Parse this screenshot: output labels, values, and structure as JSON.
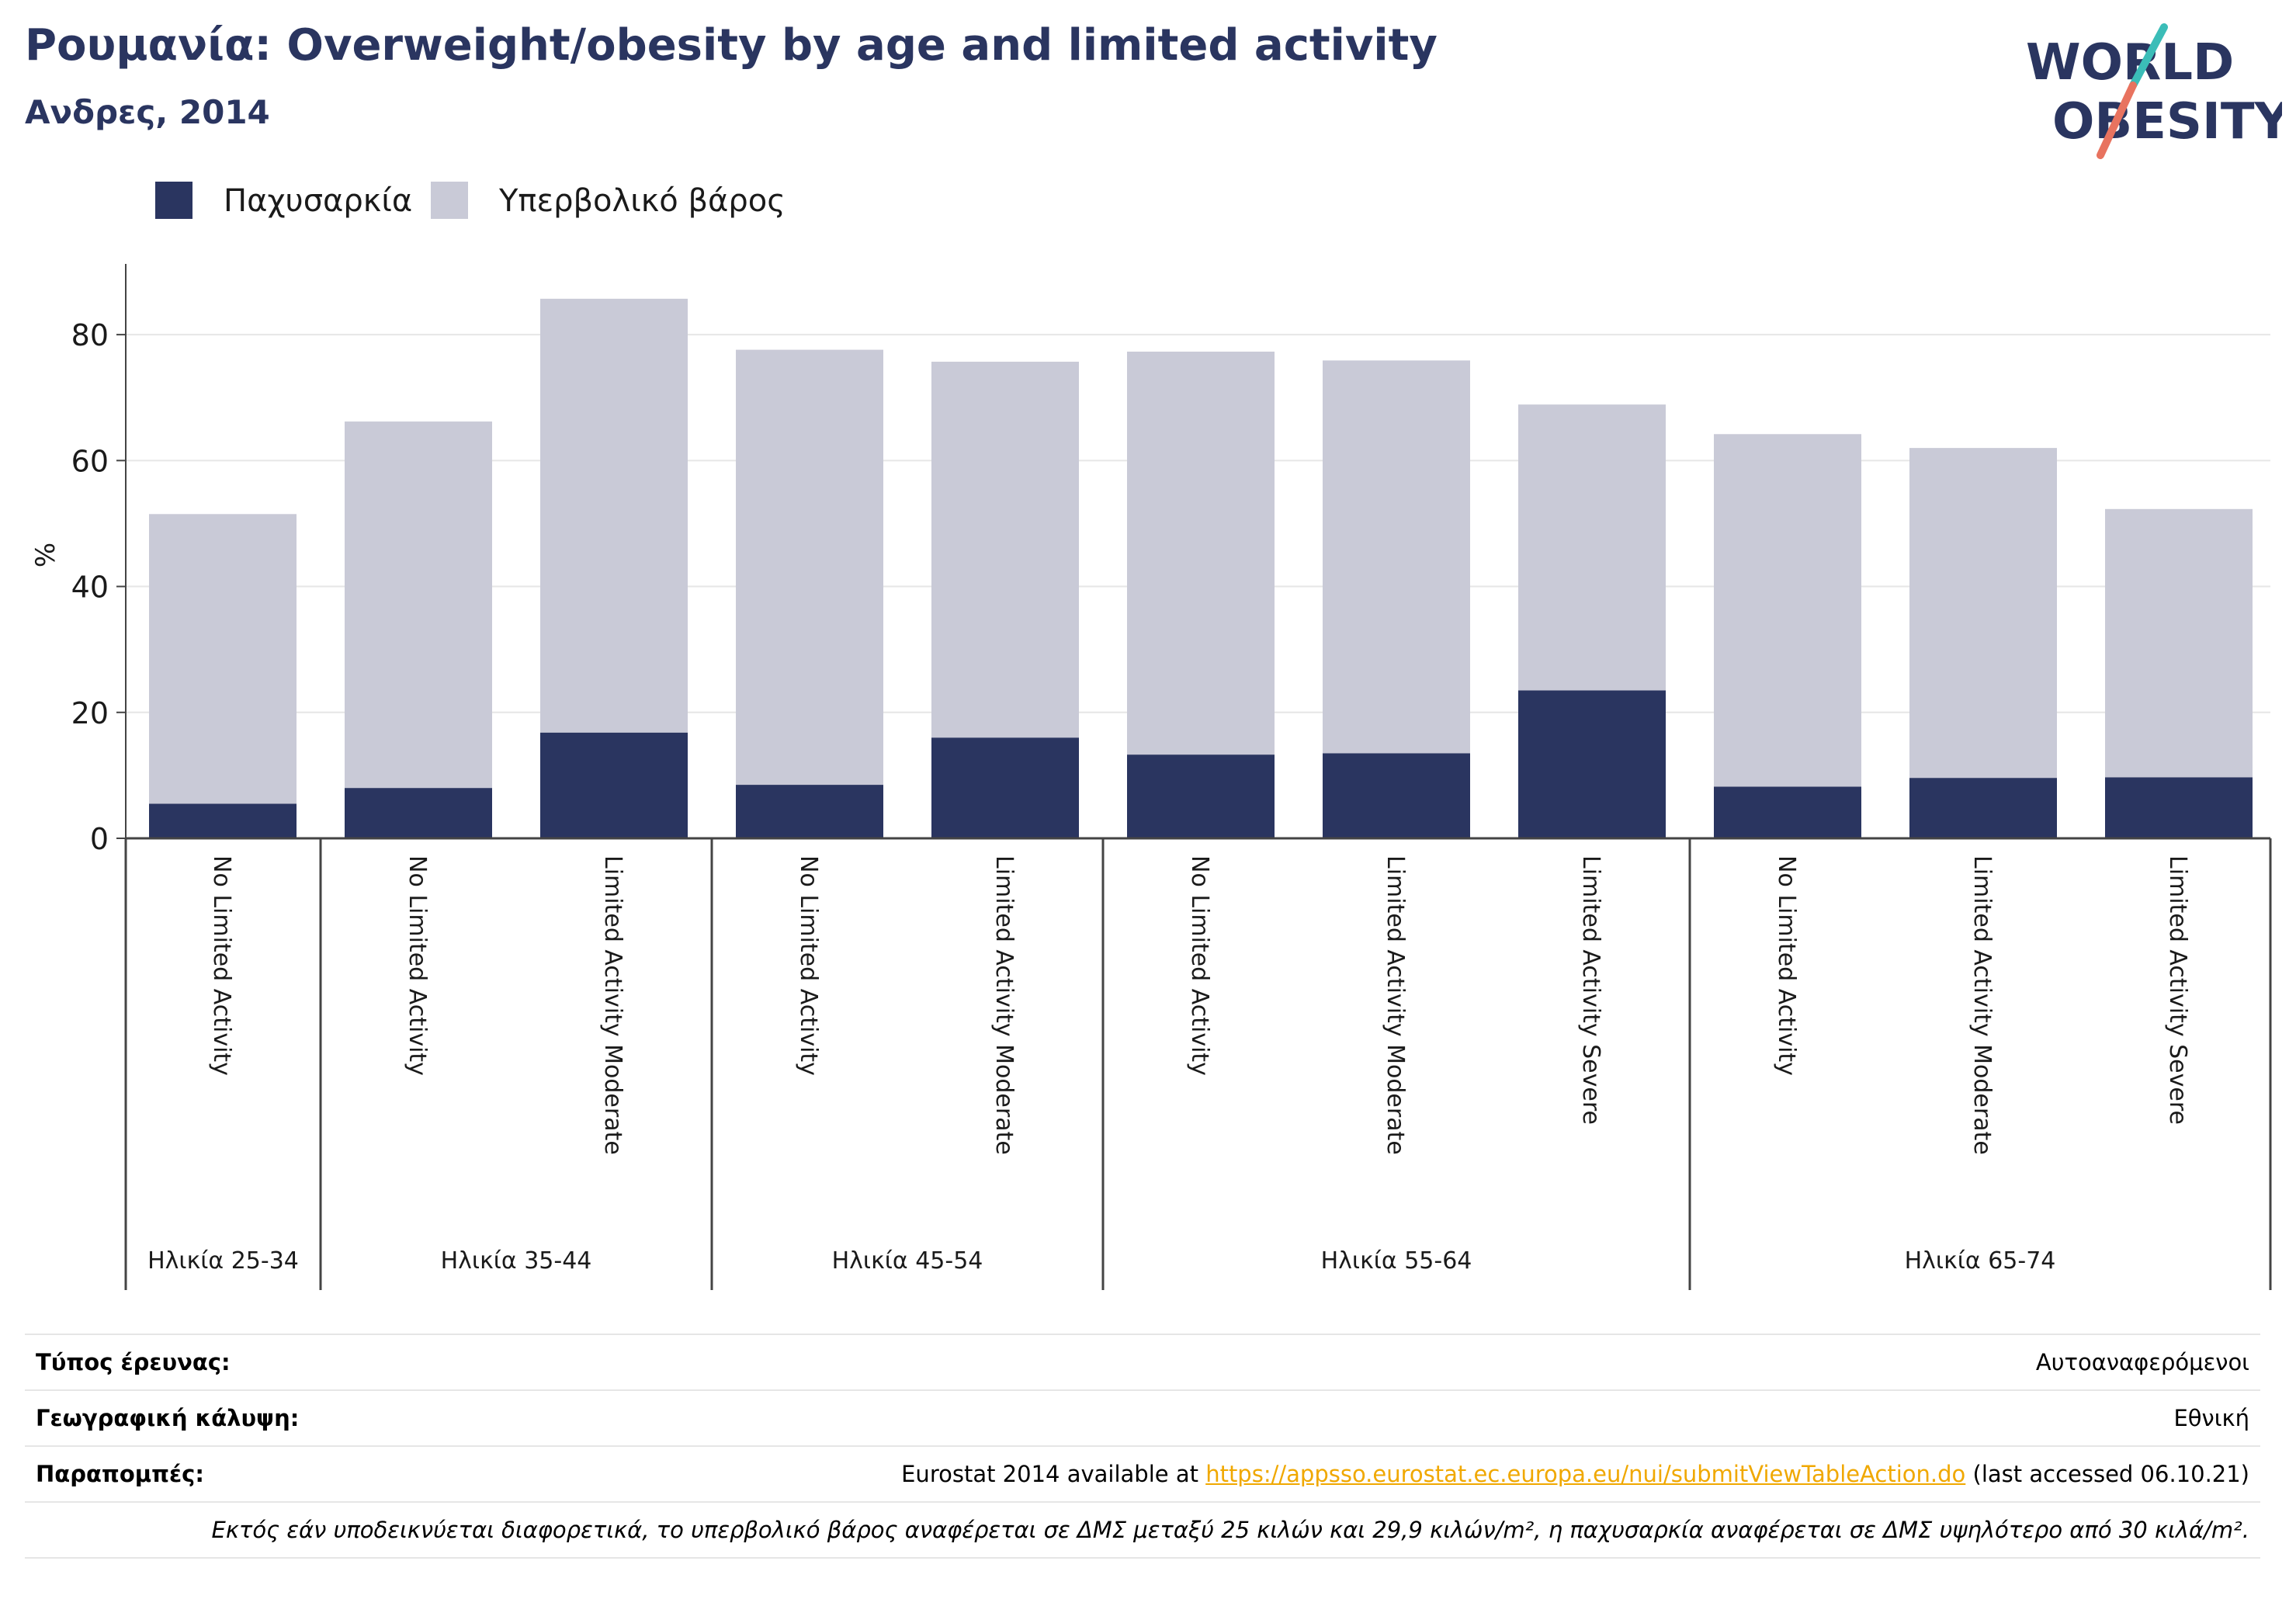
{
  "header": {
    "title": "Ρουμανία: Overweight/obesity by age and limited activity",
    "subtitle": "Ανδρες, 2014"
  },
  "logo": {
    "line1": "WORLD",
    "line2": "OBESITY"
  },
  "colors": {
    "obesity": "#2a3560",
    "overweight": "#c9cad7",
    "title": "#2a3560",
    "link": "#f0a800",
    "logo_slash_teal": "#3bbdb8",
    "logo_slash_coral": "#e8735f",
    "grid": "#e6e6e6",
    "axis": "#444444"
  },
  "chart_data": {
    "type": "bar",
    "stacked": true,
    "ylabel": "%",
    "ylim": [
      0,
      90
    ],
    "yticks": [
      0,
      20,
      40,
      60,
      80
    ],
    "grid": true,
    "legend_position": "top-left",
    "categories": [
      "No Limited Activity",
      "No Limited Activity",
      "Limited Activity Moderate",
      "No Limited Activity",
      "Limited Activity Moderate",
      "No Limited Activity",
      "Limited Activity Moderate",
      "Limited Activity Severe",
      "No Limited Activity",
      "Limited Activity Moderate",
      "Limited Activity Severe"
    ],
    "groups": [
      {
        "label": "Ηλικία 25-34",
        "count": 1
      },
      {
        "label": "Ηλικία 35-44",
        "count": 2
      },
      {
        "label": "Ηλικία 45-54",
        "count": 2
      },
      {
        "label": "Ηλικία 55-64",
        "count": 3
      },
      {
        "label": "Ηλικία 65-74",
        "count": 3
      }
    ],
    "series": [
      {
        "name": "Παχυσαρκία",
        "values": [
          5.5,
          8.0,
          16.8,
          8.5,
          16.0,
          13.3,
          13.5,
          23.5,
          8.2,
          9.6,
          9.7
        ]
      },
      {
        "name": "Υπερβολικό βάρος",
        "values": [
          46.0,
          58.2,
          68.9,
          69.1,
          59.7,
          64.0,
          62.4,
          45.4,
          56.0,
          52.4,
          42.6
        ]
      }
    ]
  },
  "meta": {
    "survey_label": "Τύπος έρευνας:",
    "survey_value": "Αυτοαναφερόμενοι",
    "coverage_label": "Γεωγραφική κάλυψη:",
    "coverage_value": "Εθνική",
    "refs_label": "Παραπομπές:",
    "refs_prefix": "Eurostat 2014 available at ",
    "refs_link": "https://appsso.eurostat.ec.europa.eu/nui/submitViewTableAction.do",
    "refs_suffix": " (last accessed 06.10.21)",
    "note": "Εκτός εάν υποδεικνύεται διαφορετικά, το υπερβολικό βάρος αναφέρεται σε ΔΜΣ μεταξύ 25 κιλών και 29,9 κιλών/m², η παχυσαρκία αναφέρεται σε ΔΜΣ υψηλότερο από 30 κιλά/m²."
  }
}
